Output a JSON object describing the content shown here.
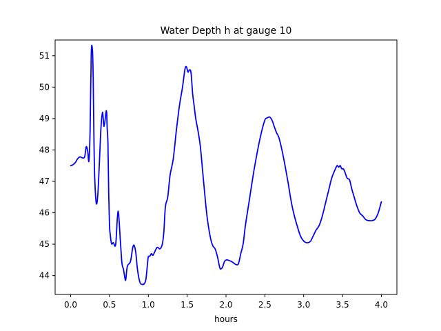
{
  "chart_data": {
    "type": "line",
    "title": "Water Depth h at gauge 10",
    "xlabel": "hours",
    "ylabel": "",
    "xlim": [
      -0.2,
      4.2
    ],
    "ylim": [
      43.4,
      51.5
    ],
    "xticks": [
      "0.0",
      "0.5",
      "1.0",
      "1.5",
      "2.0",
      "2.5",
      "3.0",
      "3.5",
      "4.0"
    ],
    "yticks": [
      "44",
      "45",
      "46",
      "47",
      "48",
      "49",
      "50",
      "51"
    ],
    "grid": false,
    "legend": "none",
    "series": [
      {
        "color": "#0000ff",
        "x": [
          0.0,
          0.03,
          0.06,
          0.09,
          0.12,
          0.15,
          0.18,
          0.2,
          0.22,
          0.235,
          0.25,
          0.265,
          0.28,
          0.29,
          0.3,
          0.31,
          0.33,
          0.35,
          0.37,
          0.39,
          0.41,
          0.43,
          0.46,
          0.47,
          0.48,
          0.49,
          0.5,
          0.51,
          0.52,
          0.53,
          0.55,
          0.58,
          0.61,
          0.64,
          0.66,
          0.68,
          0.7,
          0.71,
          0.73,
          0.77,
          0.8,
          0.82,
          0.84,
          0.86,
          0.89,
          0.92,
          0.95,
          0.97,
          0.99,
          1.0,
          1.02,
          1.04,
          1.06,
          1.1,
          1.12,
          1.15,
          1.18,
          1.2,
          1.22,
          1.25,
          1.28,
          1.32,
          1.36,
          1.4,
          1.44,
          1.47,
          1.49,
          1.51,
          1.53,
          1.55,
          1.57,
          1.59,
          1.61,
          1.64,
          1.67,
          1.7,
          1.73,
          1.76,
          1.8,
          1.83,
          1.86,
          1.89,
          1.92,
          1.94,
          1.96,
          1.98,
          2.01,
          2.04,
          2.07,
          2.1,
          2.13,
          2.16,
          2.19,
          2.22,
          2.25,
          2.3,
          2.35,
          2.4,
          2.45,
          2.5,
          2.53,
          2.56,
          2.58,
          2.6,
          2.62,
          2.65,
          2.68,
          2.72,
          2.76,
          2.8,
          2.84,
          2.88,
          2.92,
          2.96,
          3.0,
          3.03,
          3.06,
          3.09,
          3.12,
          3.16,
          3.2,
          3.24,
          3.28,
          3.32,
          3.36,
          3.4,
          3.43,
          3.45,
          3.47,
          3.49,
          3.51,
          3.53,
          3.56,
          3.59,
          3.62,
          3.65,
          3.68,
          3.72,
          3.76,
          3.8,
          3.84,
          3.88,
          3.92,
          3.96,
          4.0
        ],
        "values": [
          47.5,
          47.53,
          47.6,
          47.72,
          47.78,
          47.75,
          47.78,
          48.1,
          47.95,
          47.65,
          48.6,
          51.05,
          51.2,
          50.3,
          48.3,
          47.1,
          46.3,
          46.6,
          47.6,
          48.7,
          49.2,
          48.75,
          49.25,
          48.7,
          48.2,
          46.6,
          45.6,
          45.3,
          45.1,
          45.0,
          45.05,
          45.0,
          46.05,
          45.1,
          44.4,
          44.2,
          43.9,
          43.88,
          44.3,
          44.45,
          44.9,
          44.95,
          44.7,
          44.2,
          43.8,
          43.72,
          43.75,
          43.9,
          44.4,
          44.6,
          44.62,
          44.7,
          44.65,
          44.85,
          44.9,
          44.85,
          45.0,
          45.4,
          46.2,
          46.5,
          47.2,
          47.7,
          48.6,
          49.4,
          50.0,
          50.55,
          50.65,
          50.48,
          50.55,
          50.45,
          49.8,
          49.4,
          49.0,
          48.6,
          48.1,
          47.3,
          46.5,
          45.8,
          45.2,
          44.95,
          44.85,
          44.6,
          44.25,
          44.22,
          44.3,
          44.45,
          44.5,
          44.48,
          44.45,
          44.4,
          44.35,
          44.38,
          44.7,
          45.0,
          45.6,
          46.4,
          47.2,
          47.9,
          48.5,
          48.95,
          49.02,
          49.05,
          49.0,
          48.9,
          48.75,
          48.55,
          48.4,
          48.0,
          47.5,
          46.95,
          46.35,
          45.9,
          45.55,
          45.25,
          45.1,
          45.05,
          45.05,
          45.1,
          45.25,
          45.45,
          45.6,
          45.9,
          46.3,
          46.7,
          47.1,
          47.35,
          47.5,
          47.45,
          47.5,
          47.4,
          47.4,
          47.3,
          47.1,
          47.05,
          46.75,
          46.5,
          46.25,
          46.0,
          45.9,
          45.78,
          45.75,
          45.75,
          45.8,
          46.0,
          46.35
        ]
      }
    ]
  }
}
